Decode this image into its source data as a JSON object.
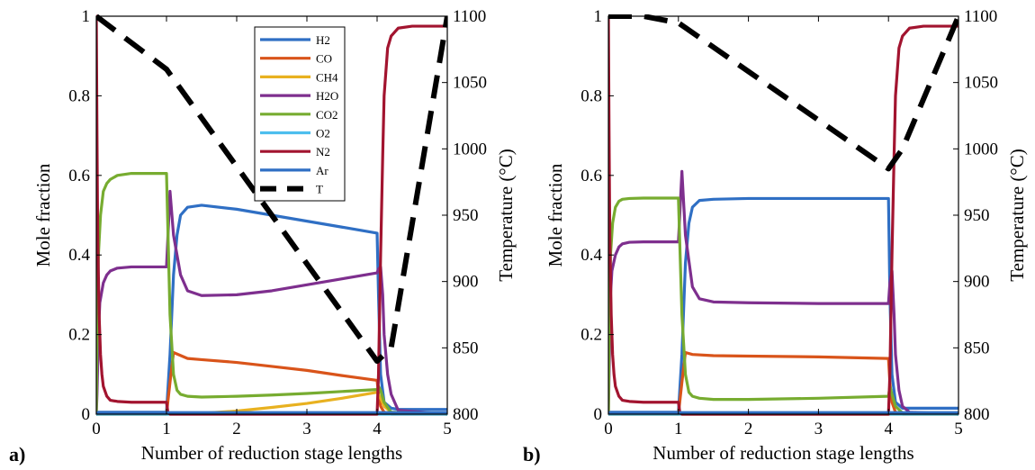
{
  "chart_data": [
    {
      "type": "line",
      "panel_label": "a)",
      "xlabel": "Number of reduction stage lengths",
      "ylabel": "Mole fraction",
      "y2label": "Temperature (°C)",
      "xlim": [
        0,
        5
      ],
      "ylim": [
        0,
        1
      ],
      "y2lim": [
        800,
        1100
      ],
      "xticks": [
        "0",
        "1",
        "2",
        "3",
        "4",
        "5"
      ],
      "yticks": [
        "0",
        "0.2",
        "0.4",
        "0.6",
        "0.8",
        "1"
      ],
      "y2ticks": [
        "800",
        "850",
        "900",
        "950",
        "1000",
        "1050",
        "1100"
      ],
      "legend": {
        "placement": "top-center",
        "entries": [
          "H2",
          "CO",
          "CH4",
          "H2O",
          "CO2",
          "O2",
          "N2",
          "Ar",
          "T"
        ]
      },
      "series": [
        {
          "name": "H2",
          "color": "#2f6fc4",
          "axis": "left",
          "x": [
            0,
            0.02,
            0.99,
            1.0,
            1.05,
            1.1,
            1.15,
            1.2,
            1.3,
            1.5,
            2,
            2.5,
            3,
            3.5,
            4.0,
            4.02,
            4.05,
            4.1,
            4.2,
            4.3,
            5
          ],
          "y": [
            0,
            0.005,
            0.005,
            0.005,
            0.15,
            0.35,
            0.45,
            0.5,
            0.52,
            0.525,
            0.515,
            0.5,
            0.485,
            0.47,
            0.455,
            0.3,
            0.1,
            0.03,
            0.015,
            0.012,
            0.012
          ]
        },
        {
          "name": "CO",
          "color": "#d9541a",
          "axis": "left",
          "x": [
            0,
            0.99,
            1.0,
            1.05,
            1.1,
            1.3,
            1.5,
            2,
            2.5,
            3,
            3.5,
            4.0,
            4.02,
            4.05,
            4.1,
            4.2,
            5
          ],
          "y": [
            0,
            0,
            0,
            0.08,
            0.155,
            0.14,
            0.137,
            0.13,
            0.12,
            0.11,
            0.097,
            0.085,
            0.05,
            0.02,
            0.005,
            0,
            0
          ]
        },
        {
          "name": "CH4",
          "color": "#e8b120",
          "axis": "left",
          "x": [
            0,
            1.0,
            1.5,
            2.0,
            2.5,
            3.0,
            3.5,
            4.0,
            4.05,
            4.1,
            4.2,
            5
          ],
          "y": [
            0,
            0,
            0.002,
            0.008,
            0.017,
            0.027,
            0.04,
            0.055,
            0.04,
            0.02,
            0.005,
            0
          ]
        },
        {
          "name": "H2O",
          "color": "#7e2f8e",
          "axis": "left",
          "x": [
            0,
            0.01,
            0.03,
            0.05,
            0.1,
            0.15,
            0.2,
            0.3,
            0.5,
            0.99,
            1.0,
            1.05,
            1.1,
            1.2,
            1.3,
            1.5,
            2,
            2.5,
            3,
            3.5,
            4.0,
            4.02,
            4.05,
            4.08,
            4.1,
            4.15,
            4.2,
            4.3,
            5
          ],
          "y": [
            0,
            0.05,
            0.2,
            0.28,
            0.33,
            0.35,
            0.36,
            0.367,
            0.37,
            0.37,
            0.37,
            0.56,
            0.45,
            0.35,
            0.31,
            0.298,
            0.3,
            0.31,
            0.325,
            0.34,
            0.355,
            0.365,
            0.37,
            0.3,
            0.2,
            0.1,
            0.05,
            0.01,
            0
          ]
        },
        {
          "name": "CO2",
          "color": "#77ac30",
          "axis": "left",
          "x": [
            0,
            0.01,
            0.03,
            0.06,
            0.1,
            0.15,
            0.2,
            0.3,
            0.5,
            0.99,
            1.0,
            1.05,
            1.1,
            1.15,
            1.2,
            1.3,
            1.5,
            2,
            2.5,
            3,
            3.5,
            4.0,
            4.02,
            4.05,
            4.1,
            4.2,
            5
          ],
          "y": [
            0,
            0.2,
            0.4,
            0.5,
            0.56,
            0.58,
            0.59,
            0.6,
            0.605,
            0.605,
            0.605,
            0.25,
            0.1,
            0.06,
            0.05,
            0.045,
            0.043,
            0.045,
            0.048,
            0.052,
            0.057,
            0.062,
            0.07,
            0.06,
            0.03,
            0.005,
            0
          ]
        },
        {
          "name": "O2",
          "color": "#4dbeee",
          "axis": "left",
          "x": [
            0,
            5
          ],
          "y": [
            0,
            0
          ]
        },
        {
          "name": "N2",
          "color": "#a2142f",
          "axis": "left",
          "x": [
            0,
            0.01,
            0.02,
            0.04,
            0.06,
            0.08,
            0.1,
            0.15,
            0.2,
            0.3,
            0.5,
            0.99,
            1.0,
            1.02,
            1.05,
            1.1,
            3.99,
            4.0,
            4.02,
            4.05,
            4.08,
            4.1,
            4.15,
            4.2,
            4.3,
            4.5,
            4.7,
            5
          ],
          "y": [
            1,
            0.7,
            0.45,
            0.25,
            0.15,
            0.1,
            0.07,
            0.045,
            0.035,
            0.032,
            0.03,
            0.03,
            0.03,
            0.005,
            0,
            0,
            0,
            0,
            0.1,
            0.4,
            0.65,
            0.8,
            0.92,
            0.95,
            0.97,
            0.975,
            0.975,
            0.975
          ]
        },
        {
          "name": "Ar",
          "color": "#2f6fc4",
          "axis": "left",
          "x": [
            0,
            5
          ],
          "y": [
            0.004,
            0.004
          ]
        },
        {
          "name": "T",
          "color": "#000000",
          "axis": "right",
          "dashed": true,
          "x": [
            0,
            1,
            4,
            4.2,
            5
          ],
          "y": [
            1100,
            1060,
            840,
            850,
            1100
          ]
        }
      ]
    },
    {
      "type": "line",
      "panel_label": "b)",
      "xlabel": "Number of reduction stage lengths",
      "ylabel": "Mole fraction",
      "y2label": "Temperature (°C)",
      "xlim": [
        0,
        5
      ],
      "ylim": [
        0,
        1
      ],
      "y2lim": [
        800,
        1100
      ],
      "xticks": [
        "0",
        "1",
        "2",
        "3",
        "4",
        "5"
      ],
      "yticks": [
        "0",
        "0.2",
        "0.4",
        "0.6",
        "0.8",
        "1"
      ],
      "y2ticks": [
        "800",
        "850",
        "900",
        "950",
        "1000",
        "1050",
        "1100"
      ],
      "series": [
        {
          "name": "H2",
          "color": "#2f6fc4",
          "axis": "left",
          "x": [
            0,
            0.99,
            1.0,
            1.05,
            1.1,
            1.15,
            1.2,
            1.3,
            1.5,
            2,
            3,
            3.99,
            4.0,
            4.02,
            4.05,
            4.1,
            4.2,
            5
          ],
          "y": [
            0.005,
            0.005,
            0.005,
            0.15,
            0.38,
            0.48,
            0.52,
            0.537,
            0.54,
            0.542,
            0.542,
            0.542,
            0.542,
            0.3,
            0.1,
            0.03,
            0.015,
            0.015
          ]
        },
        {
          "name": "CO",
          "color": "#d9541a",
          "axis": "left",
          "x": [
            0,
            0.99,
            1.0,
            1.05,
            1.1,
            1.2,
            1.5,
            2,
            3,
            3.99,
            4.0,
            4.02,
            4.05,
            4.1,
            4.2,
            5
          ],
          "y": [
            0,
            0,
            0,
            0.08,
            0.155,
            0.15,
            0.147,
            0.146,
            0.144,
            0.14,
            0.14,
            0.08,
            0.03,
            0.005,
            0,
            0
          ]
        },
        {
          "name": "CH4",
          "color": "#e8b120",
          "axis": "left",
          "x": [
            0,
            5
          ],
          "y": [
            0,
            0
          ]
        },
        {
          "name": "H2O",
          "color": "#7e2f8e",
          "axis": "left",
          "x": [
            0,
            0.01,
            0.03,
            0.05,
            0.1,
            0.15,
            0.2,
            0.3,
            0.5,
            0.99,
            1.0,
            1.05,
            1.1,
            1.2,
            1.3,
            1.5,
            2,
            3,
            3.99,
            4.0,
            4.02,
            4.05,
            4.08,
            4.1,
            4.15,
            4.2,
            4.3,
            5
          ],
          "y": [
            0,
            0.1,
            0.3,
            0.36,
            0.4,
            0.42,
            0.428,
            0.432,
            0.433,
            0.433,
            0.433,
            0.61,
            0.45,
            0.32,
            0.29,
            0.282,
            0.28,
            0.278,
            0.278,
            0.278,
            0.33,
            0.36,
            0.25,
            0.15,
            0.06,
            0.02,
            0.005,
            0
          ]
        },
        {
          "name": "CO2",
          "color": "#77ac30",
          "axis": "left",
          "x": [
            0,
            0.01,
            0.03,
            0.06,
            0.1,
            0.15,
            0.2,
            0.3,
            0.5,
            0.99,
            1.0,
            1.05,
            1.1,
            1.15,
            1.2,
            1.3,
            1.5,
            2,
            3,
            3.99,
            4.0,
            4.02,
            4.05,
            4.1,
            4.2,
            5
          ],
          "y": [
            0,
            0.2,
            0.4,
            0.48,
            0.52,
            0.535,
            0.54,
            0.542,
            0.543,
            0.543,
            0.543,
            0.25,
            0.1,
            0.055,
            0.045,
            0.04,
            0.037,
            0.037,
            0.04,
            0.045,
            0.045,
            0.07,
            0.05,
            0.02,
            0.003,
            0
          ]
        },
        {
          "name": "O2",
          "color": "#4dbeee",
          "axis": "left",
          "x": [
            0,
            5
          ],
          "y": [
            0,
            0
          ]
        },
        {
          "name": "N2",
          "color": "#a2142f",
          "axis": "left",
          "x": [
            0,
            0.01,
            0.02,
            0.04,
            0.06,
            0.08,
            0.1,
            0.15,
            0.2,
            0.3,
            0.5,
            0.99,
            1.0,
            1.02,
            1.05,
            1.1,
            3.99,
            4.0,
            4.02,
            4.05,
            4.08,
            4.1,
            4.15,
            4.2,
            4.3,
            4.5,
            4.7,
            5
          ],
          "y": [
            1,
            0.7,
            0.45,
            0.25,
            0.15,
            0.1,
            0.07,
            0.045,
            0.035,
            0.032,
            0.03,
            0.03,
            0.03,
            0.005,
            0,
            0,
            0,
            0,
            0.1,
            0.4,
            0.65,
            0.8,
            0.92,
            0.95,
            0.97,
            0.975,
            0.975,
            0.975
          ]
        },
        {
          "name": "Ar",
          "color": "#2f6fc4",
          "axis": "left",
          "x": [
            0,
            5
          ],
          "y": [
            0.004,
            0.004
          ]
        },
        {
          "name": "T",
          "color": "#000000",
          "axis": "right",
          "dashed": true,
          "x": [
            0,
            0.5,
            1,
            4,
            4.2,
            5
          ],
          "y": [
            1100,
            1100,
            1095,
            985,
            1000,
            1100
          ]
        }
      ]
    }
  ]
}
